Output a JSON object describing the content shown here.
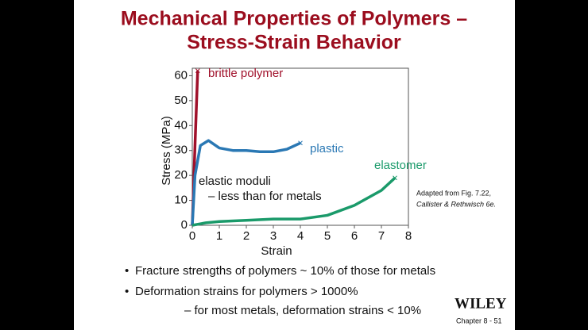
{
  "chart_data": {
    "type": "line",
    "title": [
      "Mechanical Properties of Polymers –",
      "Stress-Strain Behavior"
    ],
    "xlabel": "Strain",
    "ylabel": "Stress (MPa)",
    "xlim": [
      0,
      8
    ],
    "ylim": [
      0,
      63
    ],
    "xticks": [
      0,
      1,
      2,
      3,
      4,
      5,
      6,
      7,
      8
    ],
    "yticks": [
      0,
      10,
      20,
      30,
      40,
      50,
      60
    ],
    "series": [
      {
        "name": "brittle polymer",
        "color": "#a0102a",
        "x": [
          0,
          0.1,
          0.2
        ],
        "values": [
          0,
          32,
          62
        ]
      },
      {
        "name": "plastic",
        "color": "#2a78b4",
        "x": [
          0,
          0.1,
          0.3,
          0.6,
          1,
          1.5,
          2,
          2.5,
          3,
          3.5,
          4
        ],
        "values": [
          0,
          20,
          32,
          34,
          31,
          30,
          30,
          29.5,
          29.5,
          30.5,
          33
        ]
      },
      {
        "name": "elastomer",
        "color": "#1a9a6a",
        "x": [
          0,
          0.5,
          1,
          2,
          3,
          4,
          5,
          6,
          7,
          7.5
        ],
        "values": [
          0,
          1,
          1.5,
          2,
          2.5,
          2.5,
          4,
          8,
          14,
          19
        ]
      }
    ],
    "annotations": [
      "elastic moduli",
      "–  less than for metals"
    ],
    "source": [
      "Adapted from Fig. 7.22,",
      "Callister & Rethwisch 6e."
    ]
  },
  "slide": {
    "bullets": [
      "Fracture strengths of polymers ~ 10% of those for metals",
      "Deformation strains for polymers > 1000%"
    ],
    "sub_bullet": "– for most metals, deformation strains < 10%",
    "publisher": "WILEY",
    "footer": "Chapter 8 -  51"
  }
}
